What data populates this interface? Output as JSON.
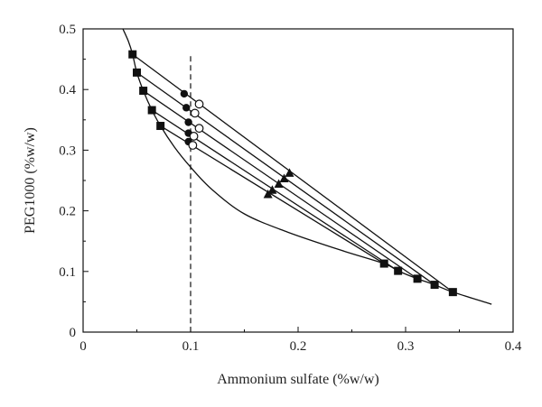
{
  "chart_data": {
    "type": "scatter",
    "xlabel": "Ammonium sulfate (%w/w)",
    "ylabel": "PEG1000 (%w/w)",
    "xlim": [
      0,
      0.4
    ],
    "ylim": [
      0,
      0.5
    ],
    "xticks": [
      0,
      0.1,
      0.2,
      0.3,
      0.4
    ],
    "yticks": [
      0,
      0.1,
      0.2,
      0.3,
      0.4,
      0.5
    ],
    "xtick_labels": [
      "0",
      "0.1",
      "0.2",
      "0.3",
      "0.4"
    ],
    "ytick_labels": [
      "0",
      "0.1",
      "0.2",
      "0.3",
      "0.4",
      "0.5"
    ],
    "grid": false,
    "binodal_curve": [
      [
        0.037,
        0.5
      ],
      [
        0.042,
        0.48
      ],
      [
        0.046,
        0.458
      ],
      [
        0.05,
        0.428
      ],
      [
        0.056,
        0.398
      ],
      [
        0.064,
        0.366
      ],
      [
        0.072,
        0.34
      ],
      [
        0.085,
        0.305
      ],
      [
        0.1,
        0.272
      ],
      [
        0.12,
        0.235
      ],
      [
        0.15,
        0.195
      ],
      [
        0.19,
        0.165
      ],
      [
        0.24,
        0.135
      ],
      [
        0.28,
        0.113
      ],
      [
        0.293,
        0.101
      ],
      [
        0.311,
        0.088
      ],
      [
        0.327,
        0.078
      ],
      [
        0.344,
        0.066
      ],
      [
        0.38,
        0.046
      ]
    ],
    "tie_lines": [
      {
        "top": [
          0.046,
          0.458
        ],
        "bottom": [
          0.344,
          0.066
        ]
      },
      {
        "top": [
          0.05,
          0.428
        ],
        "bottom": [
          0.327,
          0.078
        ]
      },
      {
        "top": [
          0.056,
          0.398
        ],
        "bottom": [
          0.311,
          0.088
        ]
      },
      {
        "top": [
          0.064,
          0.366
        ],
        "bottom": [
          0.293,
          0.101
        ]
      },
      {
        "top": [
          0.072,
          0.34
        ],
        "bottom": [
          0.28,
          0.113
        ]
      }
    ],
    "series": [
      {
        "marker": "filled-square",
        "points": [
          [
            0.046,
            0.458
          ],
          [
            0.05,
            0.428
          ],
          [
            0.056,
            0.398
          ],
          [
            0.064,
            0.366
          ],
          [
            0.072,
            0.34
          ],
          [
            0.28,
            0.113
          ],
          [
            0.293,
            0.101
          ],
          [
            0.311,
            0.088
          ],
          [
            0.327,
            0.078
          ],
          [
            0.344,
            0.066
          ]
        ]
      },
      {
        "marker": "filled-circle",
        "points": [
          [
            0.094,
            0.393
          ],
          [
            0.096,
            0.37
          ],
          [
            0.098,
            0.346
          ],
          [
            0.098,
            0.328
          ],
          [
            0.098,
            0.314
          ]
        ]
      },
      {
        "marker": "open-circle",
        "points": [
          [
            0.108,
            0.376
          ],
          [
            0.104,
            0.361
          ],
          [
            0.108,
            0.336
          ],
          [
            0.103,
            0.323
          ],
          [
            0.102,
            0.308
          ]
        ]
      },
      {
        "marker": "filled-triangle",
        "points": [
          [
            0.192,
            0.262
          ],
          [
            0.187,
            0.253
          ],
          [
            0.182,
            0.244
          ],
          [
            0.176,
            0.234
          ],
          [
            0.172,
            0.227
          ]
        ]
      }
    ],
    "reference_line": {
      "x": 0.1,
      "style": "dashed"
    },
    "colors": {
      "ink": "#111111",
      "marker_fill": "#111111",
      "open_fill": "#ffffff"
    }
  }
}
